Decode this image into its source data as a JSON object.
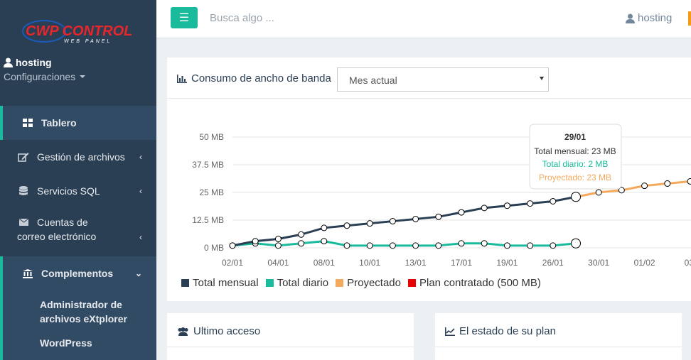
{
  "brand": {
    "logo_text": "CWP CONTROL",
    "logo_sub": "WEB PANEL"
  },
  "user": {
    "name": "hosting",
    "config_label": "Configuraciones"
  },
  "sidebar": {
    "items": [
      {
        "label": "Tablero",
        "icon": "dashboard-icon"
      },
      {
        "label": "Gestión de archivos",
        "icon": "edit-icon"
      },
      {
        "label": "Servicios SQL",
        "icon": "database-icon"
      },
      {
        "label": "Cuentas de correo electrónico",
        "icon": "envelope-icon"
      },
      {
        "label": "Complementos",
        "icon": "bank-icon"
      }
    ],
    "sub_items": [
      {
        "label": "Administrador de archivos eXtplorer"
      },
      {
        "label": "WordPress"
      }
    ]
  },
  "topbar": {
    "search_placeholder": "Busca algo ...",
    "user": "hosting"
  },
  "bandwidth": {
    "title": "Consumo de ancho de banda",
    "period_selected": "Mes actual"
  },
  "tooltip": {
    "date": "29/01",
    "monthly": "Total mensual: 23 MB",
    "daily": "Total diario: 2 MB",
    "projected": "Proyectado: 23 MB"
  },
  "colors": {
    "accent": "#1abb9c",
    "monthly": "#2a3f54",
    "daily": "#1abb9c",
    "projected": "#f5a95c",
    "plan": "#e60000"
  },
  "chart_data": {
    "type": "line",
    "y_ticks": [
      "0 MB",
      "12.5 MB",
      "25 MB",
      "37.5 MB",
      "50 MB"
    ],
    "ylim": [
      0,
      50
    ],
    "x_ticks": [
      "02/01",
      "04/01",
      "08/01",
      "10/01",
      "13/01",
      "17/01",
      "19/01",
      "26/01",
      "30/01",
      "01/02",
      "03/"
    ],
    "series": [
      {
        "name": "Total mensual",
        "values": [
          1,
          3,
          4,
          6,
          9,
          10,
          11,
          12,
          13,
          14,
          16,
          18,
          19,
          20,
          21,
          23
        ]
      },
      {
        "name": "Total diario",
        "values": [
          1,
          2,
          1,
          2,
          3,
          1,
          1,
          1,
          1,
          1,
          2,
          2,
          1,
          1,
          1,
          2
        ]
      },
      {
        "name": "Proyectado",
        "values": [
          23,
          25,
          26,
          28,
          29,
          30
        ]
      },
      {
        "name": "Plan contratado (500 MB)",
        "values": []
      }
    ]
  },
  "panels": {
    "last_access": "Ultimo acceso",
    "plan_status": "El estado de su plan"
  }
}
